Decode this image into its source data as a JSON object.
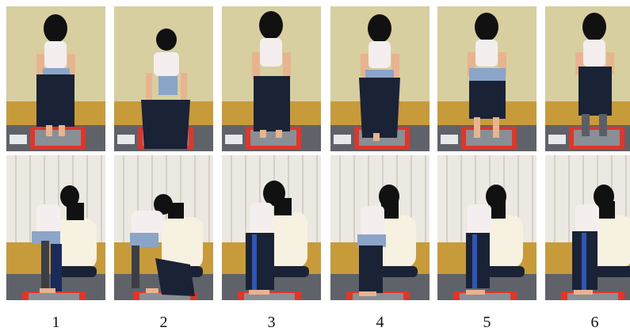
{
  "steps": [
    {
      "label": "1",
      "pants_phase": "held-at-waist",
      "adult_assist": false
    },
    {
      "label": "2",
      "pants_phase": "bent-over-pulling",
      "adult_assist": false
    },
    {
      "label": "3",
      "pants_phase": "held-at-waist",
      "adult_assist": false
    },
    {
      "label": "4",
      "pants_phase": "held-at-waist",
      "adult_assist": false
    },
    {
      "label": "5",
      "pants_phase": "pulled-up",
      "adult_assist": false
    },
    {
      "label": "6",
      "pants_phase": "pulled-up",
      "adult_assist": false
    }
  ],
  "colors": {
    "wall": "#d8cfa0",
    "floor": "#c79a3a",
    "curtain": "#ece9e3",
    "mat_red": "#e2352a",
    "mat_gray": "#8a8f96",
    "shirt": "#f4eeee",
    "skin": "#e7b48f",
    "pants": "#1a2236",
    "hair": "#111111",
    "adult_sweater": "#f7f1e2"
  }
}
